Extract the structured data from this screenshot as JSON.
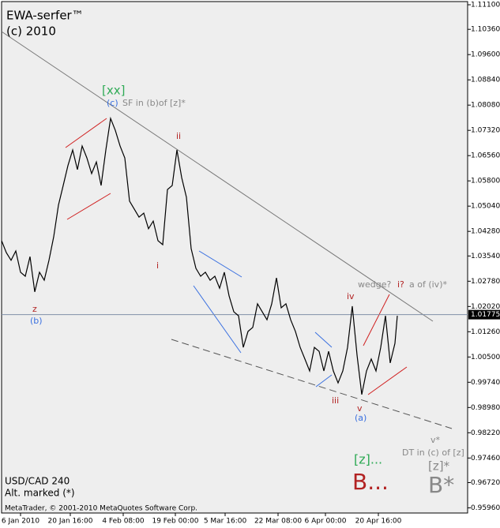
{
  "chart_data": {
    "type": "line",
    "title": "EWA-serfer™",
    "subtitle": "(c) 2010",
    "symbol": "USD/CAD 240",
    "note": "Alt. marked (*)",
    "footer": "MetaTrader, © 2001-2010 MetaQuotes Software Corp.",
    "x": [
      0,
      6,
      12,
      18,
      24,
      30,
      36,
      42,
      48,
      54,
      60,
      66,
      72,
      78,
      84,
      90,
      96,
      102,
      108,
      114,
      120,
      126,
      132,
      138,
      144,
      150,
      156,
      162,
      168,
      174,
      180,
      186,
      192,
      198,
      204,
      210,
      216,
      222,
      228,
      234,
      240,
      246,
      252,
      258,
      264,
      270,
      276,
      282,
      288,
      294,
      300,
      306,
      312,
      318,
      324,
      330,
      336,
      342,
      348,
      354,
      360,
      366,
      372,
      378,
      384,
      390,
      396,
      402,
      408,
      414,
      420,
      426,
      432,
      438,
      444,
      450,
      456,
      462,
      468,
      474,
      480,
      486,
      492,
      498,
      501
    ],
    "series": [
      {
        "name": "USD/CAD",
        "color": "#000000",
        "values": [
          1.04,
          1.0364,
          1.0341,
          1.0369,
          1.0305,
          1.0293,
          1.0352,
          1.0246,
          1.0305,
          1.0281,
          1.0341,
          1.0412,
          1.0507,
          1.0566,
          1.0626,
          1.0673,
          1.0614,
          1.0685,
          1.0649,
          1.0602,
          1.0637,
          1.0566,
          1.0673,
          1.0768,
          1.0732,
          1.0685,
          1.0649,
          1.0519,
          1.0495,
          1.0471,
          1.0483,
          1.0436,
          1.0459,
          1.04,
          1.0388,
          1.0554,
          1.0566,
          1.0673,
          1.059,
          1.0531,
          1.0376,
          1.0317,
          1.0293,
          1.0305,
          1.0281,
          1.0293,
          1.0257,
          1.0305,
          1.0234,
          1.0186,
          1.0174,
          1.0079,
          1.0127,
          1.0139,
          1.021,
          1.0186,
          1.0162,
          1.021,
          1.0288,
          1.0198,
          1.021,
          1.0162,
          1.0127,
          1.0079,
          1.0044,
          1.0008,
          1.0079,
          1.0067,
          1.0008,
          1.0067,
          1.0008,
          0.9972,
          1.0008,
          1.0079,
          1.0203,
          1.0056,
          0.9937,
          1.0008,
          1.0044,
          1.0008,
          1.0079,
          1.0174,
          1.0032,
          1.0091,
          1.0174
        ]
      }
    ],
    "last_price": 1.01775,
    "xlim": [
      0,
      590
    ],
    "xticks": [
      {
        "value": 24,
        "label": "6 Jan 2010"
      },
      {
        "value": 87,
        "label": "20 Jan 16:00"
      },
      {
        "value": 154,
        "label": "4 Feb 08:00"
      },
      {
        "value": 220,
        "label": "19 Feb 00:00"
      },
      {
        "value": 283,
        "label": "5 Mar 16:00"
      },
      {
        "value": 350,
        "label": "22 Mar 08:00"
      },
      {
        "value": 410,
        "label": "6 Apr 00:00"
      },
      {
        "value": 477,
        "label": "20 Apr 16:00"
      }
    ],
    "ylim": [
      0.95805,
      1.11243
    ],
    "yticks": [
      {
        "value": 1.111,
        "label": "1.11100"
      },
      {
        "value": 1.1036,
        "label": "1.10360"
      },
      {
        "value": 1.096,
        "label": "1.09600"
      },
      {
        "value": 1.0884,
        "label": "1.08840"
      },
      {
        "value": 1.0808,
        "label": "1.08080"
      },
      {
        "value": 1.0732,
        "label": "1.07320"
      },
      {
        "value": 1.0656,
        "label": "1.06560"
      },
      {
        "value": 1.058,
        "label": "1.05800"
      },
      {
        "value": 1.0504,
        "label": "1.05040"
      },
      {
        "value": 1.0428,
        "label": "1.04280"
      },
      {
        "value": 1.0354,
        "label": "1.03540"
      },
      {
        "value": 1.0278,
        "label": "1.02780"
      },
      {
        "value": 1.0202,
        "label": "1.02020"
      },
      {
        "value": 1.0126,
        "label": "1.01260"
      },
      {
        "value": 1.005,
        "label": "1.00500"
      },
      {
        "value": 0.9974,
        "label": "0.99740"
      },
      {
        "value": 0.9898,
        "label": "0.98980"
      },
      {
        "value": 0.9822,
        "label": "0.98220"
      },
      {
        "value": 0.9746,
        "label": "0.97460"
      },
      {
        "value": 0.9672,
        "label": "0.96720"
      },
      {
        "value": 0.9596,
        "label": "0.95960"
      }
    ],
    "annotations": [
      "[xx]",
      "(c)",
      "SF in (b)of [z]*",
      "ii",
      "i",
      "z",
      "(b)",
      "iv",
      "iii",
      "v",
      "(a)",
      "wedge?",
      "i?",
      "a of (iv)*",
      "v*",
      "DT in (c) of [z]",
      "[z]*",
      "[z]...",
      "B...",
      "B*"
    ]
  }
}
